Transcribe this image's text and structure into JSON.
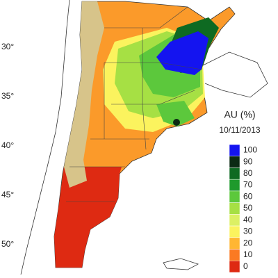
{
  "latitude_labels": [
    "30°",
    "35°",
    "40°",
    "45°",
    "50°"
  ],
  "legend": {
    "title": "AU (%)",
    "date": "10/11/2013",
    "entries": [
      {
        "label": "100",
        "color": "#1414f0"
      },
      {
        "label": "90",
        "color": "#0c2a14"
      },
      {
        "label": "80",
        "color": "#0e6a22"
      },
      {
        "label": "70",
        "color": "#1f9a2c"
      },
      {
        "label": "60",
        "color": "#5cc83c"
      },
      {
        "label": "50",
        "color": "#a6e044"
      },
      {
        "label": "40",
        "color": "#dcf064"
      },
      {
        "label": "30",
        "color": "#fbf35e"
      },
      {
        "label": "20",
        "color": "#ffb632"
      },
      {
        "label": "10",
        "color": "#fb7a22"
      },
      {
        "label": "0",
        "color": "#de2a12"
      }
    ]
  }
}
